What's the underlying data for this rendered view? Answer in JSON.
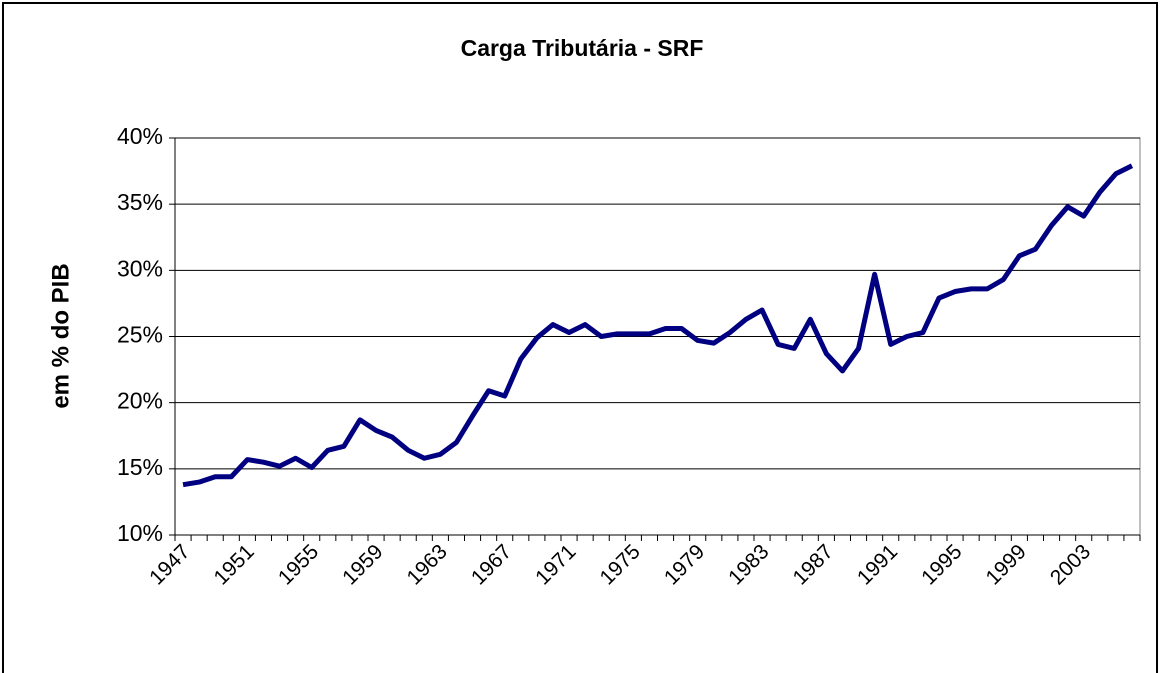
{
  "chart_data": {
    "type": "line",
    "title": "Carga Tributária - SRF",
    "y_label": "em % do PIB",
    "categories": [
      "1947",
      null,
      null,
      null,
      "1951",
      null,
      null,
      null,
      "1955",
      null,
      null,
      null,
      "1959",
      null,
      null,
      null,
      "1963",
      null,
      null,
      null,
      "1967",
      null,
      null,
      null,
      "1971",
      null,
      null,
      null,
      "1975",
      null,
      null,
      null,
      "1979",
      null,
      null,
      null,
      "1983",
      null,
      null,
      null,
      "1987",
      null,
      null,
      null,
      "1991",
      null,
      null,
      null,
      "1995",
      null,
      null,
      null,
      "1999",
      null,
      null,
      null,
      "2003",
      null,
      null,
      null
    ],
    "series": [
      {
        "color": "#000080",
        "values": [
          13.8,
          14.0,
          14.4,
          14.4,
          15.7,
          15.5,
          15.2,
          15.8,
          15.1,
          16.4,
          16.7,
          18.7,
          17.9,
          17.4,
          16.4,
          15.8,
          16.1,
          17.0,
          19.0,
          20.9,
          20.5,
          23.3,
          24.9,
          25.9,
          25.3,
          25.9,
          25.0,
          25.2,
          25.2,
          25.2,
          25.6,
          25.6,
          24.7,
          24.5,
          25.3,
          26.3,
          27.0,
          24.4,
          24.1,
          26.3,
          23.7,
          22.4,
          24.1,
          29.7,
          24.4,
          25.0,
          25.3,
          27.9,
          28.4,
          28.6,
          28.6,
          29.3,
          31.1,
          31.6,
          33.4,
          34.8,
          34.1,
          35.9,
          37.3,
          37.9
        ]
      }
    ],
    "ylim": [
      10,
      40
    ],
    "yticks": [
      {
        "value": 10,
        "label": "10%"
      },
      {
        "value": 15,
        "label": "15%"
      },
      {
        "value": 20,
        "label": "20%"
      },
      {
        "value": 25,
        "label": "25%"
      },
      {
        "value": 30,
        "label": "30%"
      },
      {
        "value": 35,
        "label": "35%"
      },
      {
        "value": 40,
        "label": "40%"
      }
    ],
    "grid": true
  }
}
